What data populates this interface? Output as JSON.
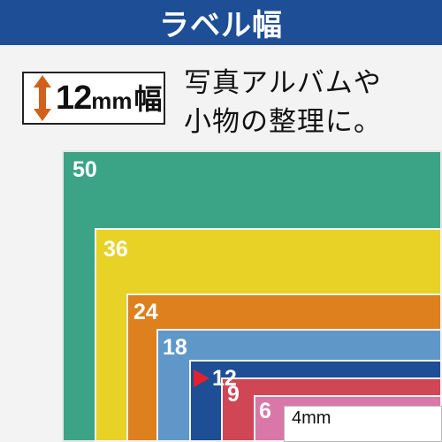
{
  "header": {
    "title": "ラベル幅"
  },
  "label_box": {
    "number": "12",
    "unit": "mm",
    "kanji": "幅",
    "icon": "double-arrow-vertical-icon"
  },
  "description": {
    "line1": "写真アルバムや",
    "line2": "小物の整理に。"
  },
  "tapes": {
    "w50": "50",
    "w36": "36",
    "w24": "24",
    "w18": "18",
    "w12": "12",
    "w9": "9",
    "w6": "6",
    "w4": "4mm"
  },
  "colors": {
    "header": "#1d4e96",
    "w50": "#3ba486",
    "w36": "#e8d225",
    "w24": "#dd801d",
    "w18": "#5f98c8",
    "w12": "#1d4e96",
    "w9": "#d14655",
    "w6": "#d977a8",
    "w4": "#ffffff",
    "arrow": "#d2601a",
    "marker": "#e2222a"
  }
}
